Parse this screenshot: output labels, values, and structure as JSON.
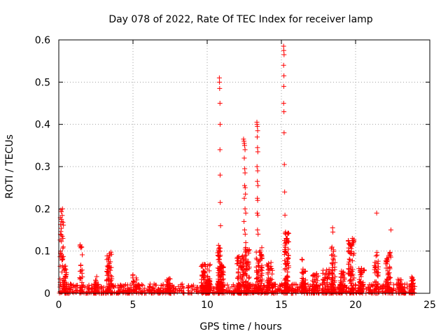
{
  "chart_data": {
    "type": "scatter",
    "title": "Day 078 of 2022, Rate Of TEC Index for receiver lamp",
    "xlabel": "GPS time / hours",
    "ylabel": "ROTI / TECUs",
    "xlim": [
      0,
      25
    ],
    "ylim": [
      0,
      0.6
    ],
    "xticks": [
      "0",
      "5",
      "10",
      "15",
      "20",
      "25"
    ],
    "yticks": [
      "0",
      "0.1",
      "0.2",
      "0.3",
      "0.4",
      "0.5",
      "0.6"
    ],
    "grid": true,
    "marker": "+",
    "color": "#ff0000",
    "baseline": {
      "x_start": 0.0,
      "x_end": 24.0,
      "y_min": 0.0,
      "y_max": 0.022
    },
    "bursts": [
      {
        "x": 0.2,
        "width": 0.25,
        "peak": 0.2,
        "n": 40
      },
      {
        "x": 0.45,
        "width": 0.2,
        "peak": 0.07,
        "n": 40
      },
      {
        "x": 1.5,
        "width": 0.2,
        "peak": 0.115,
        "n": 25
      },
      {
        "x": 2.5,
        "width": 0.2,
        "peak": 0.04,
        "n": 20
      },
      {
        "x": 3.4,
        "width": 0.35,
        "peak": 0.1,
        "n": 60
      },
      {
        "x": 5.1,
        "width": 0.3,
        "peak": 0.045,
        "n": 20
      },
      {
        "x": 7.4,
        "width": 0.3,
        "peak": 0.035,
        "n": 20
      },
      {
        "x": 9.9,
        "width": 0.6,
        "peak": 0.07,
        "n": 100
      },
      {
        "x": 10.8,
        "width": 0.2,
        "peak": 0.115,
        "n": 60
      },
      {
        "x": 10.95,
        "width": 0.3,
        "peak": 0.07,
        "n": 60
      },
      {
        "x": 12.25,
        "width": 0.5,
        "peak": 0.09,
        "n": 80
      },
      {
        "x": 12.7,
        "width": 0.3,
        "peak": 0.11,
        "n": 60
      },
      {
        "x": 13.5,
        "width": 0.4,
        "peak": 0.11,
        "n": 70
      },
      {
        "x": 14.2,
        "width": 0.4,
        "peak": 0.075,
        "n": 50
      },
      {
        "x": 15.35,
        "width": 0.3,
        "peak": 0.145,
        "n": 80
      },
      {
        "x": 16.5,
        "width": 0.3,
        "peak": 0.09,
        "n": 40
      },
      {
        "x": 17.3,
        "width": 0.5,
        "peak": 0.05,
        "n": 40
      },
      {
        "x": 18.0,
        "width": 0.5,
        "peak": 0.06,
        "n": 40
      },
      {
        "x": 18.5,
        "width": 0.3,
        "peak": 0.11,
        "n": 50
      },
      {
        "x": 19.1,
        "width": 0.4,
        "peak": 0.06,
        "n": 40
      },
      {
        "x": 19.7,
        "width": 0.4,
        "peak": 0.13,
        "n": 70
      },
      {
        "x": 20.4,
        "width": 0.4,
        "peak": 0.06,
        "n": 40
      },
      {
        "x": 21.4,
        "width": 0.3,
        "peak": 0.1,
        "n": 40
      },
      {
        "x": 22.2,
        "width": 0.35,
        "peak": 0.1,
        "n": 50
      },
      {
        "x": 23.0,
        "width": 0.3,
        "peak": 0.035,
        "n": 25
      },
      {
        "x": 23.8,
        "width": 0.2,
        "peak": 0.05,
        "n": 25
      }
    ],
    "points": [
      [
        0.08,
        0.015
      ],
      [
        0.12,
        0.02
      ],
      [
        0.18,
        0.175
      ],
      [
        0.2,
        0.17
      ],
      [
        0.25,
        0.2
      ],
      [
        0.28,
        0.13
      ],
      [
        0.3,
        0.06
      ],
      [
        10.82,
        0.51
      ],
      [
        10.83,
        0.5
      ],
      [
        10.84,
        0.485
      ],
      [
        10.86,
        0.45
      ],
      [
        10.87,
        0.4
      ],
      [
        10.86,
        0.34
      ],
      [
        10.87,
        0.28
      ],
      [
        10.88,
        0.215
      ],
      [
        10.9,
        0.16
      ],
      [
        12.45,
        0.365
      ],
      [
        12.48,
        0.36
      ],
      [
        12.5,
        0.355
      ],
      [
        12.52,
        0.35
      ],
      [
        12.55,
        0.34
      ],
      [
        12.5,
        0.32
      ],
      [
        12.53,
        0.295
      ],
      [
        12.55,
        0.285
      ],
      [
        12.52,
        0.255
      ],
      [
        12.56,
        0.25
      ],
      [
        12.58,
        0.235
      ],
      [
        12.5,
        0.225
      ],
      [
        12.55,
        0.2
      ],
      [
        12.6,
        0.19
      ],
      [
        12.48,
        0.17
      ],
      [
        12.52,
        0.15
      ],
      [
        12.56,
        0.14
      ],
      [
        12.6,
        0.12
      ],
      [
        13.35,
        0.405
      ],
      [
        13.36,
        0.4
      ],
      [
        13.38,
        0.395
      ],
      [
        13.4,
        0.385
      ],
      [
        13.37,
        0.37
      ],
      [
        13.39,
        0.345
      ],
      [
        13.41,
        0.335
      ],
      [
        13.36,
        0.3
      ],
      [
        13.4,
        0.29
      ],
      [
        13.38,
        0.265
      ],
      [
        13.42,
        0.255
      ],
      [
        13.38,
        0.225
      ],
      [
        13.4,
        0.22
      ],
      [
        13.37,
        0.19
      ],
      [
        13.41,
        0.185
      ],
      [
        13.39,
        0.15
      ],
      [
        13.43,
        0.14
      ],
      [
        15.15,
        0.585
      ],
      [
        15.16,
        0.575
      ],
      [
        15.18,
        0.565
      ],
      [
        15.15,
        0.54
      ],
      [
        15.17,
        0.515
      ],
      [
        15.16,
        0.49
      ],
      [
        15.15,
        0.45
      ],
      [
        15.17,
        0.43
      ],
      [
        15.18,
        0.38
      ],
      [
        15.2,
        0.305
      ],
      [
        15.22,
        0.24
      ],
      [
        15.24,
        0.185
      ],
      [
        15.28,
        0.145
      ],
      [
        15.3,
        0.14
      ],
      [
        15.32,
        0.13
      ],
      [
        15.3,
        0.12
      ],
      [
        21.42,
        0.19
      ],
      [
        22.38,
        0.15
      ],
      [
        18.45,
        0.155
      ],
      [
        18.47,
        0.145
      ],
      [
        19.78,
        0.13
      ],
      [
        19.8,
        0.125
      ],
      [
        19.82,
        0.12
      ]
    ]
  }
}
